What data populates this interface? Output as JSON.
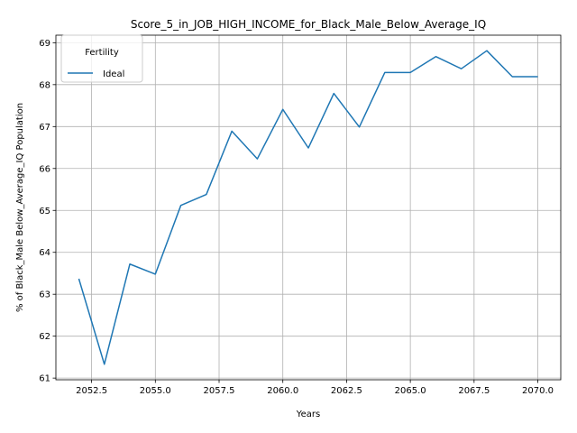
{
  "chart_data": {
    "type": "line",
    "title": "Score_5_in_JOB_HIGH_INCOME_for_Black_Male_Below_Average_IQ",
    "xlabel": "Years",
    "ylabel": "% of Black_Male Below_Average_IQ Population",
    "xlim": [
      2051.1,
      2070.9
    ],
    "ylim": [
      60.96,
      69.18
    ],
    "x_ticks": [
      2052.5,
      2055.0,
      2057.5,
      2060.0,
      2062.5,
      2065.0,
      2067.5,
      2070.0
    ],
    "x_tick_labels": [
      "2052.5",
      "2055.0",
      "2057.5",
      "2060.0",
      "2062.5",
      "2065.0",
      "2067.5",
      "2070.0"
    ],
    "y_ticks": [
      61,
      62,
      63,
      64,
      65,
      66,
      67,
      68,
      69
    ],
    "y_tick_labels": [
      "61",
      "62",
      "63",
      "64",
      "65",
      "66",
      "67",
      "68",
      "69"
    ],
    "grid": true,
    "legend": {
      "title": "Fertility",
      "placement": "top-left"
    },
    "x": [
      2052,
      2053,
      2054,
      2055,
      2056,
      2057,
      2058,
      2059,
      2060,
      2061,
      2062,
      2063,
      2064,
      2065,
      2066,
      2067,
      2068,
      2069,
      2070
    ],
    "series": [
      {
        "name": "Ideal",
        "color": "#1f77b4",
        "values": [
          63.37,
          61.33,
          63.72,
          63.48,
          65.12,
          65.38,
          66.89,
          66.23,
          67.41,
          66.49,
          67.79,
          66.99,
          68.29,
          68.29,
          68.67,
          68.38,
          68.81,
          68.19,
          68.19
        ]
      }
    ]
  }
}
